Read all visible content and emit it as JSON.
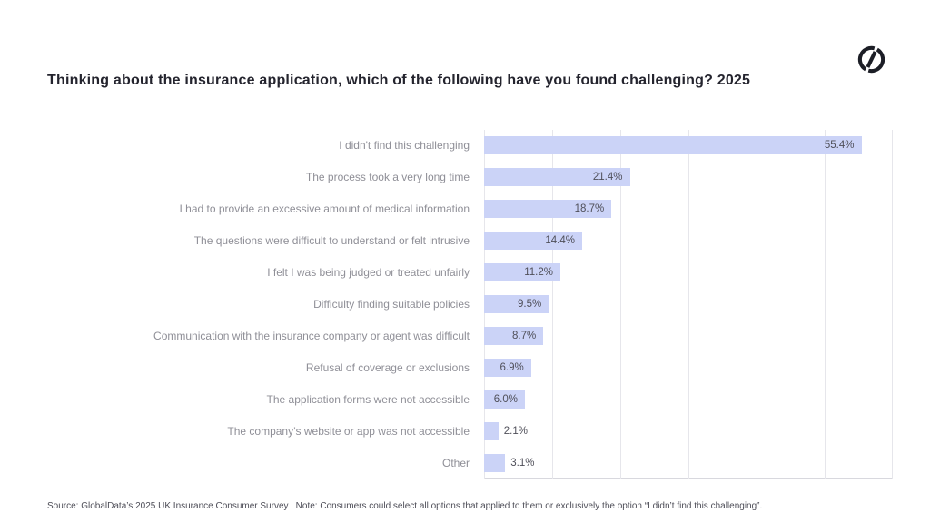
{
  "header": {
    "logo_name": "GlobalData"
  },
  "chart_data": {
    "type": "bar",
    "orientation": "horizontal",
    "title": "Thinking about the insurance application, which of the following have you found challenging? 2025",
    "categories": [
      "I didn't find this challenging",
      "The process took a very long time",
      "I had to provide an excessive amount of medical information",
      "The questions were difficult to understand or felt intrusive",
      "I felt I was being judged or treated unfairly",
      "Difficulty finding suitable policies",
      "Communication with the insurance company or agent was difficult",
      "Refusal of coverage or exclusions",
      "The application forms were not accessible",
      "The company’s website or app was not accessible",
      "Other"
    ],
    "values": [
      55.4,
      21.4,
      18.7,
      14.4,
      11.2,
      9.5,
      8.7,
      6.9,
      6.0,
      2.1,
      3.1
    ],
    "value_labels": [
      "55.4%",
      "21.4%",
      "18.7%",
      "14.4%",
      "11.2%",
      "9.5%",
      "8.7%",
      "6.9%",
      "6.0%",
      "2.1%",
      "3.1%"
    ],
    "xlim": [
      0,
      60
    ],
    "gridline_step": 10,
    "grid": true,
    "legend_position": "none",
    "bar_color": "#cbd3f7",
    "category_label_color": "#8f8f97",
    "value_label_color": "#4f4f59"
  },
  "footer": {
    "source": "Source: GlobalData’s 2025 UK Insurance Consumer Survey | Note: Consumers could select all options that applied to them or exclusively the option “I didn’t find this challenging”."
  }
}
